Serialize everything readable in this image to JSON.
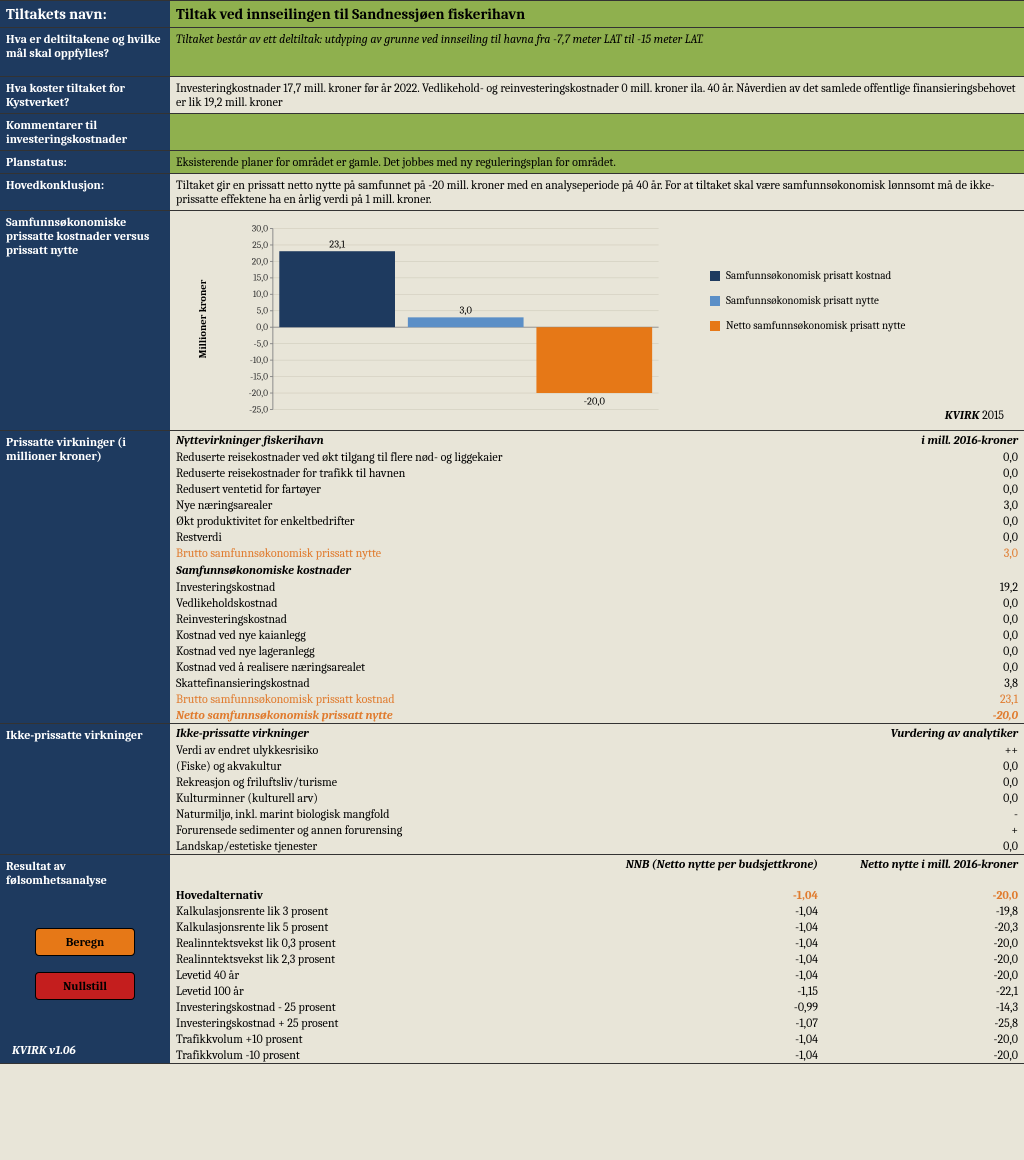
{
  "colors": {
    "sidebar": "#1e3a5f",
    "green": "#8fb04e",
    "beige": "#e8e5d8",
    "chart_cost": "#1e3a5f",
    "chart_benefit": "#5b8fc7",
    "chart_net": "#e67817",
    "orange_text": "#e07b2e"
  },
  "title": {
    "label": "Tiltakets navn:",
    "value": "Tiltak ved innseilingen til Sandnessjøen fiskerihavn"
  },
  "rows": {
    "deltiltak": {
      "label": "Hva er deltiltakene og hvilke mål skal oppfylles?",
      "value": "Tiltaket består av ett deltiltak: utdyping av grunne ved innseiling til havna fra -7,7 meter LAT til -15 meter LAT."
    },
    "kostnad": {
      "label": "Hva koster tiltaket for Kystverket?",
      "value": "Investeringkostnader 17,7 mill. kroner før år 2022. Vedlikehold- og reinvesteringskostnader 0 mill. kroner ila. 40 år. Nåverdien av det samlede offentlige finansieringsbehovet er lik 19,2 mill. kroner"
    },
    "kommentarer": {
      "label": "Kommentarer til investeringskostnader",
      "value": ""
    },
    "planstatus": {
      "label": "Planstatus:",
      "value": "Eksisterende planer for området er gamle. Det jobbes med ny reguleringsplan for området."
    },
    "hovedkonklusjon": {
      "label": "Hovedkonklusjon:",
      "value": "Tiltaket gir en prissatt netto nytte på samfunnet på -20 mill. kroner med en analyseperiode på 40 år. For at tiltaket skal være samfunnsøkonomisk lønnsomt må de ikke-prissatte effektene ha en årlig verdi på 1 mill. kroner."
    }
  },
  "chart": {
    "label": "Samfunnsøkonomiske prissatte kostnader versus prissatt nytte",
    "type": "bar-waterfall",
    "ylabel": "Millioner kroner",
    "ylim": [
      -25,
      30
    ],
    "ytick_step": 5,
    "yticks": [
      "30,0",
      "25,0",
      "20,0",
      "15,0",
      "10,0",
      "5,0",
      "0,0",
      "-5,0",
      "-10,0",
      "-15,0",
      "-20,0",
      "-25,0"
    ],
    "bars": [
      {
        "label": "23,1",
        "value": 23.1,
        "from": 0,
        "color": "#1e3a5f"
      },
      {
        "label": "3,0",
        "value": 3.0,
        "from": 0,
        "color": "#5b8fc7"
      },
      {
        "label": "-20,0",
        "value": -20.0,
        "from": 0,
        "color": "#e67817"
      }
    ],
    "legend": [
      {
        "color": "#1e3a5f",
        "text": "Samfunnsøkonomisk prisatt kostnad"
      },
      {
        "color": "#5b8fc7",
        "text": "Samfunnsøkonomisk prisatt nytte"
      },
      {
        "color": "#e67817",
        "text": "Netto samfunnsøkonomisk prisatt nytte"
      }
    ],
    "source": "KVIRK",
    "source_year": "2015",
    "background_color": "#e8e5d8",
    "grid_color": "#c9c5b5",
    "bar_width": 0.9
  },
  "prissatte": {
    "label": "Prissatte virkninger (i millioner kroner)",
    "header1": "Nyttevirkninger fiskerihavn",
    "header1_right": "i mill. 2016-kroner",
    "nytte_rows": [
      {
        "name": "Reduserte reisekostnader ved økt tilgang til flere nød- og liggekaier",
        "val": "0,0"
      },
      {
        "name": "Reduserte reisekostnader for trafikk til havnen",
        "val": "0,0"
      },
      {
        "name": "Redusert ventetid for fartøyer",
        "val": "0,0"
      },
      {
        "name": "Nye næringsarealer",
        "val": "3,0"
      },
      {
        "name": "Økt produktivitet for enkeltbedrifter",
        "val": "0,0"
      },
      {
        "name": "Restverdi",
        "val": "0,0"
      }
    ],
    "brutto_nytte": {
      "name": "Brutto samfunnsøkonomisk prissatt nytte",
      "val": "3,0"
    },
    "header2": "Samfunnsøkonomiske kostnader",
    "kost_rows": [
      {
        "name": "Investeringskostnad",
        "val": "19,2"
      },
      {
        "name": "Vedlikeholdskostnad",
        "val": "0,0"
      },
      {
        "name": "Reinvesteringskostnad",
        "val": "0,0"
      },
      {
        "name": "Kostnad ved nye kaianlegg",
        "val": "0,0"
      },
      {
        "name": "Kostnad ved nye lageranlegg",
        "val": "0,0"
      },
      {
        "name": "Kostnad ved å realisere næringsarealet",
        "val": "0,0"
      },
      {
        "name": "Skattefinansieringskostnad",
        "val": "3,8"
      }
    ],
    "brutto_kostnad": {
      "name": "Brutto samfunnsøkonomisk prissatt kostnad",
      "val": "23,1"
    },
    "netto": {
      "name": "Netto samfunnsøkonomisk prissatt nytte",
      "val": "-20,0"
    }
  },
  "ikke_prissatte": {
    "label": "Ikke-prissatte virkninger",
    "header": "Ikke-prissatte virkninger",
    "header_right": "Vurdering av analytiker",
    "rows": [
      {
        "name": "Verdi av endret ulykkesrisiko",
        "val": "++"
      },
      {
        "name": "(Fiske) og akvakultur",
        "val": "0,0"
      },
      {
        "name": "Rekreasjon og friluftsliv/turisme",
        "val": "0,0"
      },
      {
        "name": "Kulturminner (kulturell arv)",
        "val": "0,0"
      },
      {
        "name": "Naturmiljø, inkl. marint biologisk mangfold",
        "val": "-"
      },
      {
        "name": "Forurensede sedimenter og annen forurensing",
        "val": "+"
      },
      {
        "name": "Landskap/estetiske tjenester",
        "val": "0,0"
      }
    ]
  },
  "sensitivity": {
    "label": "Resultat av følsomhetsanalyse",
    "col1": "NNB (Netto nytte per budsjettkrone)",
    "col2": "Netto nytte i mill. 2016-kroner",
    "main": {
      "name": "Hovedalternativ",
      "c1": "-1,04",
      "c2": "-20,0"
    },
    "rows": [
      {
        "name": "Kalkulasjonsrente lik 3 prosent",
        "c1": "-1,04",
        "c2": "-19,8"
      },
      {
        "name": "Kalkulasjonsrente lik 5 prosent",
        "c1": "-1,04",
        "c2": "-20,3"
      },
      {
        "name": "Realinntektsvekst lik 0,3 prosent",
        "c1": "-1,04",
        "c2": "-20,0"
      },
      {
        "name": "Realinntektsvekst lik 2,3 prosent",
        "c1": "-1,04",
        "c2": "-20,0"
      },
      {
        "name": "Levetid 40 år",
        "c1": "-1,04",
        "c2": "-20,0"
      },
      {
        "name": "Levetid 100 år",
        "c1": "-1,15",
        "c2": "-22,1"
      },
      {
        "name": "Investeringskostnad - 25 prosent",
        "c1": "-0,99",
        "c2": "-14,3"
      },
      {
        "name": "Investeringskostnad + 25 prosent",
        "c1": "-1,07",
        "c2": "-25,8"
      },
      {
        "name": "Trafikkvolum +10 prosent",
        "c1": "-1,04",
        "c2": "-20,0"
      },
      {
        "name": "Trafikkvolum -10 prosent",
        "c1": "-1,04",
        "c2": "-20,0"
      }
    ]
  },
  "buttons": {
    "beregn": "Beregn",
    "nullstill": "Nullstill"
  },
  "footer": "KVIRK v1.06"
}
